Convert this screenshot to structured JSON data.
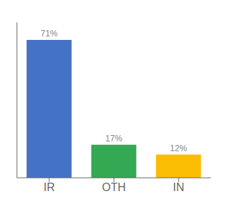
{
  "chart_data": {
    "type": "bar",
    "categories": [
      "IR",
      "OTH",
      "IN"
    ],
    "values": [
      71,
      17,
      12
    ],
    "value_labels": [
      "71%",
      "17%",
      "12%"
    ],
    "colors": [
      "#4472C4",
      "#34A853",
      "#FBBC04"
    ],
    "ylim": [
      0,
      80
    ],
    "data_labels": true,
    "tick_labels": "x",
    "grid": false
  }
}
